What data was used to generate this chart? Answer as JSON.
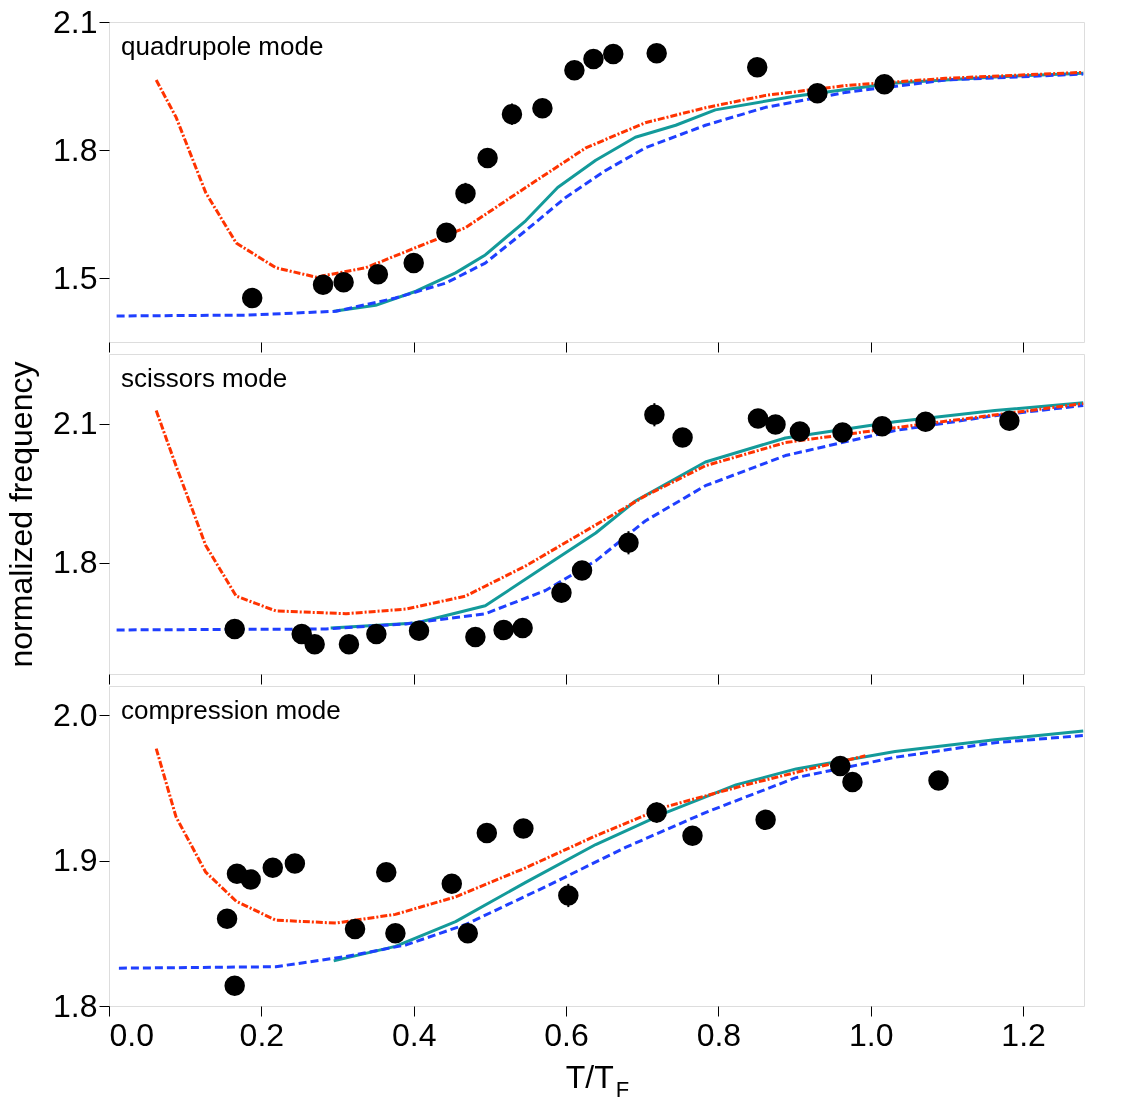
{
  "chart_data": [
    {
      "type": "scatter",
      "title": "quadrupole mode",
      "xlim": [
        0,
        1.28
      ],
      "ylim": [
        1.35,
        2.1
      ],
      "xticks": [
        0,
        0.2,
        0.4,
        0.6,
        0.8,
        1,
        1.2
      ],
      "yticks": [
        1.5,
        1.8,
        2.1
      ],
      "tick_labels": "y",
      "series": [
        {
          "color": "#000000",
          "marker": "circle",
          "x": [
            0.188,
            0.281,
            0.308,
            0.353,
            0.4,
            0.443,
            0.468,
            0.497,
            0.529,
            0.569,
            0.611,
            0.636,
            0.662,
            0.719,
            0.851,
            0.93,
            1.018
          ],
          "values": [
            1.453,
            1.484,
            1.49,
            1.509,
            1.535,
            1.606,
            1.698,
            1.781,
            1.884,
            1.898,
            1.987,
            2.013,
            2.025,
            2.027,
            1.994,
            1.933,
            1.954
          ],
          "errors": [
            null,
            null,
            null,
            null,
            null,
            null,
            0.025,
            0.02,
            0.025,
            0.015,
            null,
            null,
            null,
            null,
            null,
            null,
            null
          ]
        },
        {
          "type": "line",
          "color": "#139a9a",
          "line_style": "solid",
          "x": [
            0.295,
            0.35,
            0.403,
            0.455,
            0.494,
            0.547,
            0.589,
            0.639,
            0.691,
            0.744,
            0.796,
            0.9,
            1.032,
            1.163,
            1.279
          ],
          "values": [
            1.422,
            1.436,
            1.469,
            1.512,
            1.554,
            1.634,
            1.712,
            1.776,
            1.83,
            1.858,
            1.894,
            1.926,
            1.957,
            1.971,
            1.98
          ]
        },
        {
          "type": "line",
          "color": "#1f3fff",
          "line_style": "dashed",
          "x": [
            0.01,
            0.18,
            0.298,
            0.376,
            0.442,
            0.494,
            0.547,
            0.599,
            0.652,
            0.704,
            0.783,
            0.862,
            0.967,
            1.098,
            1.279
          ],
          "values": [
            1.411,
            1.413,
            1.422,
            1.453,
            1.488,
            1.535,
            1.611,
            1.688,
            1.752,
            1.805,
            1.858,
            1.9,
            1.935,
            1.964,
            1.978
          ]
        },
        {
          "type": "line",
          "color": "#ff3300",
          "line_style": "dashdot",
          "x": [
            0.062,
            0.088,
            0.127,
            0.167,
            0.219,
            0.272,
            0.337,
            0.468,
            0.547,
            0.626,
            0.704,
            0.783,
            0.862,
            0.967,
            1.098,
            1.279
          ],
          "values": [
            1.964,
            1.877,
            1.7,
            1.582,
            1.524,
            1.502,
            1.524,
            1.618,
            1.712,
            1.805,
            1.864,
            1.899,
            1.928,
            1.951,
            1.968,
            1.982
          ]
        }
      ]
    },
    {
      "type": "scatter",
      "title": "scissors mode",
      "ylabel": "normalized frequency",
      "xlim": [
        0,
        1.28
      ],
      "ylim": [
        1.56,
        2.25
      ],
      "xticks": [
        0,
        0.2,
        0.4,
        0.6,
        0.8,
        1,
        1.2
      ],
      "yticks": [
        1.8,
        2.1
      ],
      "tick_labels": "y",
      "series": [
        {
          "color": "#000000",
          "marker": "circle",
          "x": [
            0.165,
            0.253,
            0.27,
            0.315,
            0.351,
            0.407,
            0.481,
            0.518,
            0.543,
            0.594,
            0.621,
            0.682,
            0.716,
            0.753,
            0.852,
            0.875,
            0.907,
            0.963,
            1.015,
            1.072,
            1.182
          ],
          "values": [
            1.657,
            1.646,
            1.624,
            1.624,
            1.646,
            1.653,
            1.64,
            1.655,
            1.659,
            1.735,
            1.783,
            1.843,
            2.119,
            2.07,
            2.111,
            2.098,
            2.083,
            2.081,
            2.094,
            2.104,
            2.106
          ],
          "errors": [
            null,
            null,
            null,
            null,
            null,
            null,
            null,
            null,
            null,
            0.015,
            0.02,
            0.025,
            0.025,
            0.02,
            null,
            null,
            null,
            null,
            null,
            null,
            null
          ]
        },
        {
          "type": "line",
          "color": "#139a9a",
          "line_style": "solid",
          "x": [
            0.291,
            0.403,
            0.494,
            0.573,
            0.639,
            0.691,
            0.783,
            0.888,
            1.032,
            1.163,
            1.279
          ],
          "values": [
            1.659,
            1.67,
            1.707,
            1.793,
            1.864,
            1.933,
            2.017,
            2.069,
            2.104,
            2.128,
            2.145
          ]
        },
        {
          "type": "line",
          "color": "#1f3fff",
          "line_style": "dashed",
          "x": [
            0.01,
            0.285,
            0.39,
            0.494,
            0.573,
            0.639,
            0.704,
            0.783,
            0.888,
            1.032,
            1.163,
            1.279
          ],
          "values": [
            1.655,
            1.657,
            1.668,
            1.69,
            1.74,
            1.804,
            1.89,
            1.966,
            2.031,
            2.085,
            2.117,
            2.139
          ]
        },
        {
          "type": "line",
          "color": "#ff3300",
          "line_style": "dashdot",
          "x": [
            0.062,
            0.088,
            0.127,
            0.167,
            0.219,
            0.311,
            0.39,
            0.468,
            0.547,
            0.626,
            0.704,
            0.783,
            0.888,
            1.032,
            1.279
          ],
          "values": [
            2.128,
            2.009,
            1.837,
            1.728,
            1.696,
            1.69,
            1.7,
            1.728,
            1.793,
            1.869,
            1.944,
            2.009,
            2.059,
            2.091,
            2.143
          ]
        }
      ]
    },
    {
      "type": "scatter",
      "title": "compression mode",
      "xlabel": "T/T$_{F}$",
      "xlim": [
        0,
        1.28
      ],
      "ylim": [
        1.8,
        2.02
      ],
      "xticks": [
        {
          "value": 0,
          "label": "0.0"
        },
        {
          "value": 0.2,
          "label": "0.2"
        },
        {
          "value": 0.4,
          "label": "0.4"
        },
        {
          "value": 0.6,
          "label": "0.6"
        },
        {
          "value": 0.8,
          "label": "0.8"
        },
        {
          "value": 1,
          "label": "1.0"
        },
        {
          "value": 1.2,
          "label": "1.2"
        }
      ],
      "yticks": [
        1.8,
        1.9,
        {
          "value": 2,
          "label": "2.0"
        }
      ],
      "series": [
        {
          "color": "#000000",
          "marker": "circle",
          "x": [
            0.155,
            0.168,
            0.186,
            0.215,
            0.244,
            0.165,
            0.323,
            0.364,
            0.376,
            0.45,
            0.471,
            0.496,
            0.544,
            0.603,
            0.719,
            0.766,
            0.862,
            0.96,
            0.976,
            1.089
          ],
          "values": [
            1.86,
            1.891,
            1.887,
            1.895,
            1.898,
            1.814,
            1.853,
            1.892,
            1.85,
            1.884,
            1.85,
            1.919,
            1.922,
            1.876,
            1.933,
            1.917,
            1.928,
            1.965,
            1.954,
            1.955
          ],
          "errors": [
            null,
            null,
            null,
            null,
            null,
            null,
            null,
            null,
            null,
            null,
            null,
            null,
            null,
            0.008,
            0.007,
            null,
            null,
            null,
            null,
            0.006
          ]
        },
        {
          "type": "line",
          "color": "#139a9a",
          "line_style": "solid",
          "x": [
            0.295,
            0.376,
            0.455,
            0.547,
            0.639,
            0.731,
            0.823,
            0.902,
            1.032,
            1.163,
            1.279
          ],
          "values": [
            1.831,
            1.841,
            1.858,
            1.885,
            1.911,
            1.933,
            1.952,
            1.963,
            1.975,
            1.983,
            1.989
          ]
        },
        {
          "type": "line",
          "color": "#1f3fff",
          "line_style": "dashed",
          "x": [
            0.013,
            0.219,
            0.311,
            0.39,
            0.468,
            0.573,
            0.678,
            0.783,
            0.902,
            1.032,
            1.163,
            1.279
          ],
          "values": [
            1.826,
            1.827,
            1.834,
            1.842,
            1.856,
            1.882,
            1.909,
            1.933,
            1.957,
            1.971,
            1.981,
            1.986
          ]
        },
        {
          "type": "line",
          "color": "#ff3300",
          "line_style": "dashdot",
          "x": [
            0.062,
            0.088,
            0.127,
            0.167,
            0.219,
            0.298,
            0.376,
            0.455,
            0.547,
            0.639,
            0.731,
            0.836,
            0.928,
            0.993
          ],
          "values": [
            1.977,
            1.93,
            1.892,
            1.872,
            1.859,
            1.857,
            1.863,
            1.875,
            1.895,
            1.917,
            1.937,
            1.952,
            1.964,
            1.972
          ]
        }
      ]
    }
  ]
}
